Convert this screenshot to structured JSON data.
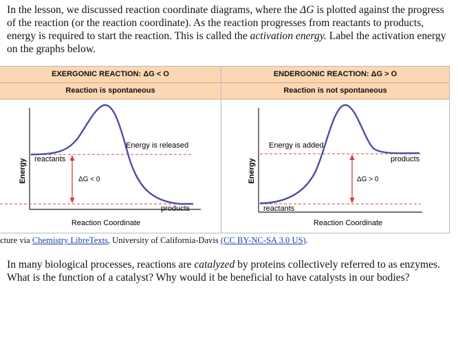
{
  "intro": {
    "part1": "In the lesson, we discussed reaction coordinate diagrams, where the ",
    "delta_g": "ΔG",
    "part2": " is plotted against the progress of the reaction (or the reaction coordinate). As the reaction progresses from reactants to products, energy is required to start the reaction. This is called the ",
    "term": "activation energy.",
    "part3": " Label the activation energy on the graphs below."
  },
  "figure": {
    "exergonic": {
      "title": "EXERGONIC REACTION: ΔG < O",
      "subtitle": "Reaction is spontaneous",
      "y_axis": "Energy",
      "x_axis": "Reaction Coordinate",
      "energy_note": "Energy is released",
      "reactants_label": "reactants",
      "products_label": "products",
      "delta_label": "ΔG < 0"
    },
    "endergonic": {
      "title": "ENDERGONIC REACTION: ΔG > O",
      "subtitle": "Reaction is not spontaneous",
      "y_axis": "Energy",
      "x_axis": "Reaction Coordinate",
      "energy_note": "Energy is added",
      "reactants_label": "reactants",
      "products_label": "products",
      "delta_label": "ΔG > 0"
    }
  },
  "credit": {
    "prefix": "cture via ",
    "link1": "Chemistry LibreTexts",
    "middle": ", University of California-Davis ",
    "link2": "(CC BY-NC-SA 3.0 US)",
    "suffix": "."
  },
  "question": {
    "part1": "In many biological processes, reactions are ",
    "term": "catalyzed",
    "part2": " by proteins collectively referred to as enzymes. What is the function of a catalyst? Why would it be beneficial to have catalysts in our bodies?"
  },
  "colors": {
    "header_bg": "#fcd7b4",
    "curve": "#4a4ea6",
    "dashed": "#e06a6a",
    "arrow": "#d23a3a"
  }
}
